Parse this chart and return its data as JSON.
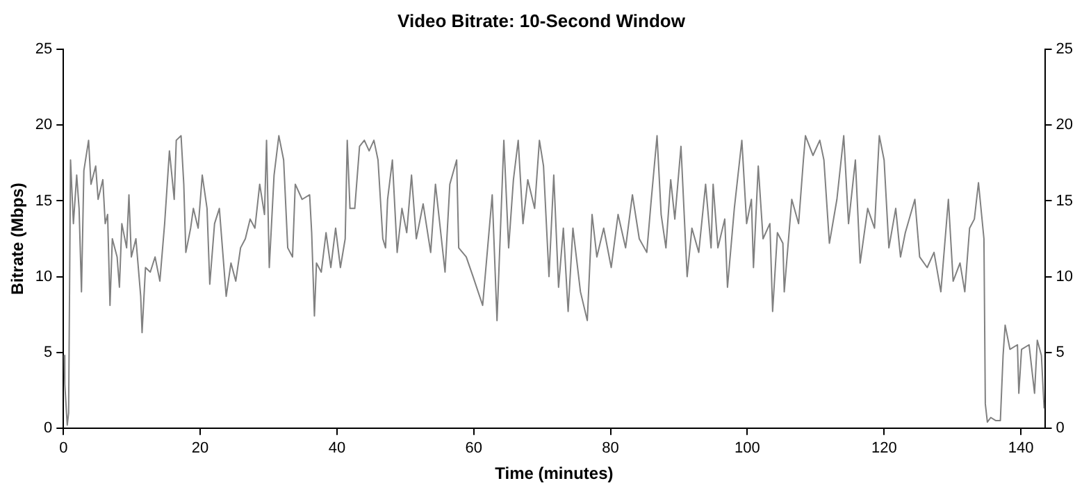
{
  "chart_data": {
    "type": "line",
    "title": "Video Bitrate: 10-Second Window",
    "xlabel": "Time (minutes)",
    "ylabel": "Bitrate (Mbps)",
    "xlim": [
      0,
      143.5
    ],
    "xticks": [
      0,
      20,
      40,
      60,
      80,
      100,
      120,
      140
    ],
    "ylim": [
      0,
      25
    ],
    "yticks": [
      0,
      5,
      10,
      15,
      20,
      25
    ],
    "y2lim": [
      0,
      25
    ],
    "y2ticks": [
      0,
      5,
      10,
      15,
      20,
      25
    ],
    "grid": false,
    "legend": false,
    "marker": "none",
    "line_style": "solid",
    "series": [
      {
        "color": "#808080",
        "x": [
          0.1,
          0.2,
          0.56,
          0.76,
          1.04,
          1.46,
          1.94,
          2.29,
          2.64,
          2.99,
          3.68,
          4.03,
          4.72,
          5.07,
          5.76,
          6.11,
          6.46,
          6.81,
          7.15,
          7.85,
          8.19,
          8.54,
          9.24,
          9.58,
          9.93,
          10.6,
          11.3,
          11.5,
          12.0,
          12.7,
          13.4,
          14.1,
          14.8,
          15.5,
          16.2,
          16.5,
          17.2,
          17.6,
          17.9,
          18.6,
          19.0,
          19.7,
          20.3,
          21.0,
          21.4,
          22.1,
          22.8,
          23.8,
          24.5,
          25.2,
          25.9,
          26.6,
          27.3,
          28.0,
          28.7,
          29.4,
          29.7,
          30.1,
          30.8,
          31.5,
          32.2,
          32.8,
          33.5,
          33.9,
          34.9,
          36.0,
          36.3,
          36.7,
          37.0,
          37.7,
          38.4,
          39.1,
          39.8,
          40.5,
          41.2,
          41.5,
          41.9,
          42.6,
          43.3,
          44.0,
          44.7,
          45.4,
          46.0,
          46.7,
          47.1,
          47.4,
          48.1,
          48.8,
          49.5,
          50.2,
          50.9,
          51.6,
          52.6,
          53.7,
          54.4,
          55.1,
          55.8,
          56.5,
          57.5,
          57.8,
          58.9,
          59.9,
          61.3,
          62.7,
          63.4,
          64.4,
          65.1,
          65.8,
          66.5,
          67.2,
          67.9,
          68.9,
          69.6,
          70.2,
          71.0,
          71.7,
          72.4,
          73.1,
          73.8,
          74.5,
          75.6,
          76.6,
          77.3,
          78.0,
          79.0,
          80.1,
          81.1,
          82.2,
          83.2,
          84.2,
          85.3,
          85.9,
          86.8,
          87.4,
          88.1,
          88.8,
          89.4,
          90.3,
          91.2,
          91.9,
          92.9,
          93.9,
          94.7,
          95.0,
          95.7,
          96.7,
          97.1,
          98.1,
          99.2,
          99.9,
          100.6,
          100.9,
          101.6,
          102.3,
          103.3,
          103.7,
          104.4,
          105.2,
          105.4,
          106.5,
          107.5,
          108.2,
          108.5,
          109.6,
          110.6,
          111.2,
          112.0,
          113.1,
          114.1,
          114.8,
          115.8,
          116.5,
          117.6,
          118.6,
          119.3,
          120.0,
          120.7,
          121.7,
          122.4,
          123.1,
          124.5,
          125.2,
          126.3,
          127.3,
          128.3,
          129.4,
          130.1,
          131.1,
          131.8,
          132.5,
          133.2,
          133.8,
          134.6,
          134.8,
          135.1,
          135.6,
          136.3,
          137.0,
          137.4,
          137.7,
          138.4,
          139.5,
          139.7,
          140.1,
          141.2,
          142.0,
          142.4,
          143.0,
          143.4
        ],
        "values": [
          4.8,
          2.9,
          0.2,
          1.0,
          17.7,
          13.5,
          16.7,
          14.5,
          9.0,
          17.0,
          19.0,
          16.1,
          17.3,
          15.1,
          16.4,
          13.5,
          14.1,
          8.1,
          12.5,
          11.3,
          9.3,
          13.5,
          11.9,
          15.4,
          11.3,
          12.5,
          8.7,
          6.3,
          10.6,
          10.3,
          11.3,
          9.7,
          13.5,
          18.3,
          15.1,
          19.0,
          19.3,
          16.1,
          11.6,
          13.2,
          14.5,
          13.2,
          16.7,
          14.5,
          9.5,
          13.5,
          14.5,
          8.7,
          10.9,
          9.7,
          11.9,
          12.5,
          13.8,
          13.2,
          16.1,
          14.1,
          19.0,
          10.6,
          16.7,
          19.3,
          17.7,
          11.9,
          11.3,
          16.1,
          15.1,
          15.4,
          12.9,
          7.4,
          10.9,
          10.3,
          12.9,
          10.6,
          13.2,
          10.6,
          12.5,
          19.0,
          14.5,
          14.5,
          18.6,
          19.0,
          18.3,
          19.0,
          17.7,
          12.5,
          11.9,
          15.1,
          17.7,
          11.6,
          14.5,
          12.9,
          16.7,
          12.5,
          14.8,
          11.6,
          16.1,
          13.2,
          10.3,
          16.1,
          17.7,
          11.9,
          11.3,
          10.0,
          8.1,
          15.4,
          7.1,
          19.0,
          11.9,
          16.4,
          19.0,
          13.5,
          16.4,
          14.5,
          19.0,
          17.3,
          10.0,
          16.7,
          9.3,
          13.2,
          7.7,
          13.2,
          9.0,
          7.1,
          14.1,
          11.3,
          13.2,
          10.6,
          14.1,
          11.9,
          15.4,
          12.5,
          11.6,
          14.8,
          19.3,
          14.1,
          11.9,
          16.4,
          13.8,
          18.6,
          10.0,
          13.2,
          11.6,
          16.1,
          11.9,
          16.1,
          11.9,
          13.8,
          9.3,
          14.5,
          19.0,
          13.5,
          15.1,
          10.6,
          17.3,
          12.5,
          13.5,
          7.7,
          12.9,
          12.2,
          9.0,
          15.1,
          13.5,
          17.7,
          19.3,
          18.0,
          19.0,
          17.7,
          12.2,
          15.1,
          19.3,
          13.5,
          17.7,
          10.9,
          14.5,
          13.2,
          19.3,
          17.7,
          11.9,
          14.5,
          11.3,
          12.9,
          15.1,
          11.3,
          10.6,
          11.6,
          9.0,
          15.1,
          9.7,
          10.9,
          9.0,
          13.2,
          13.8,
          16.2,
          12.5,
          1.6,
          0.4,
          0.7,
          0.5,
          0.5,
          4.8,
          6.8,
          5.2,
          5.5,
          2.3,
          5.2,
          5.5,
          2.3,
          5.8,
          4.8,
          1.3
        ]
      }
    ]
  }
}
